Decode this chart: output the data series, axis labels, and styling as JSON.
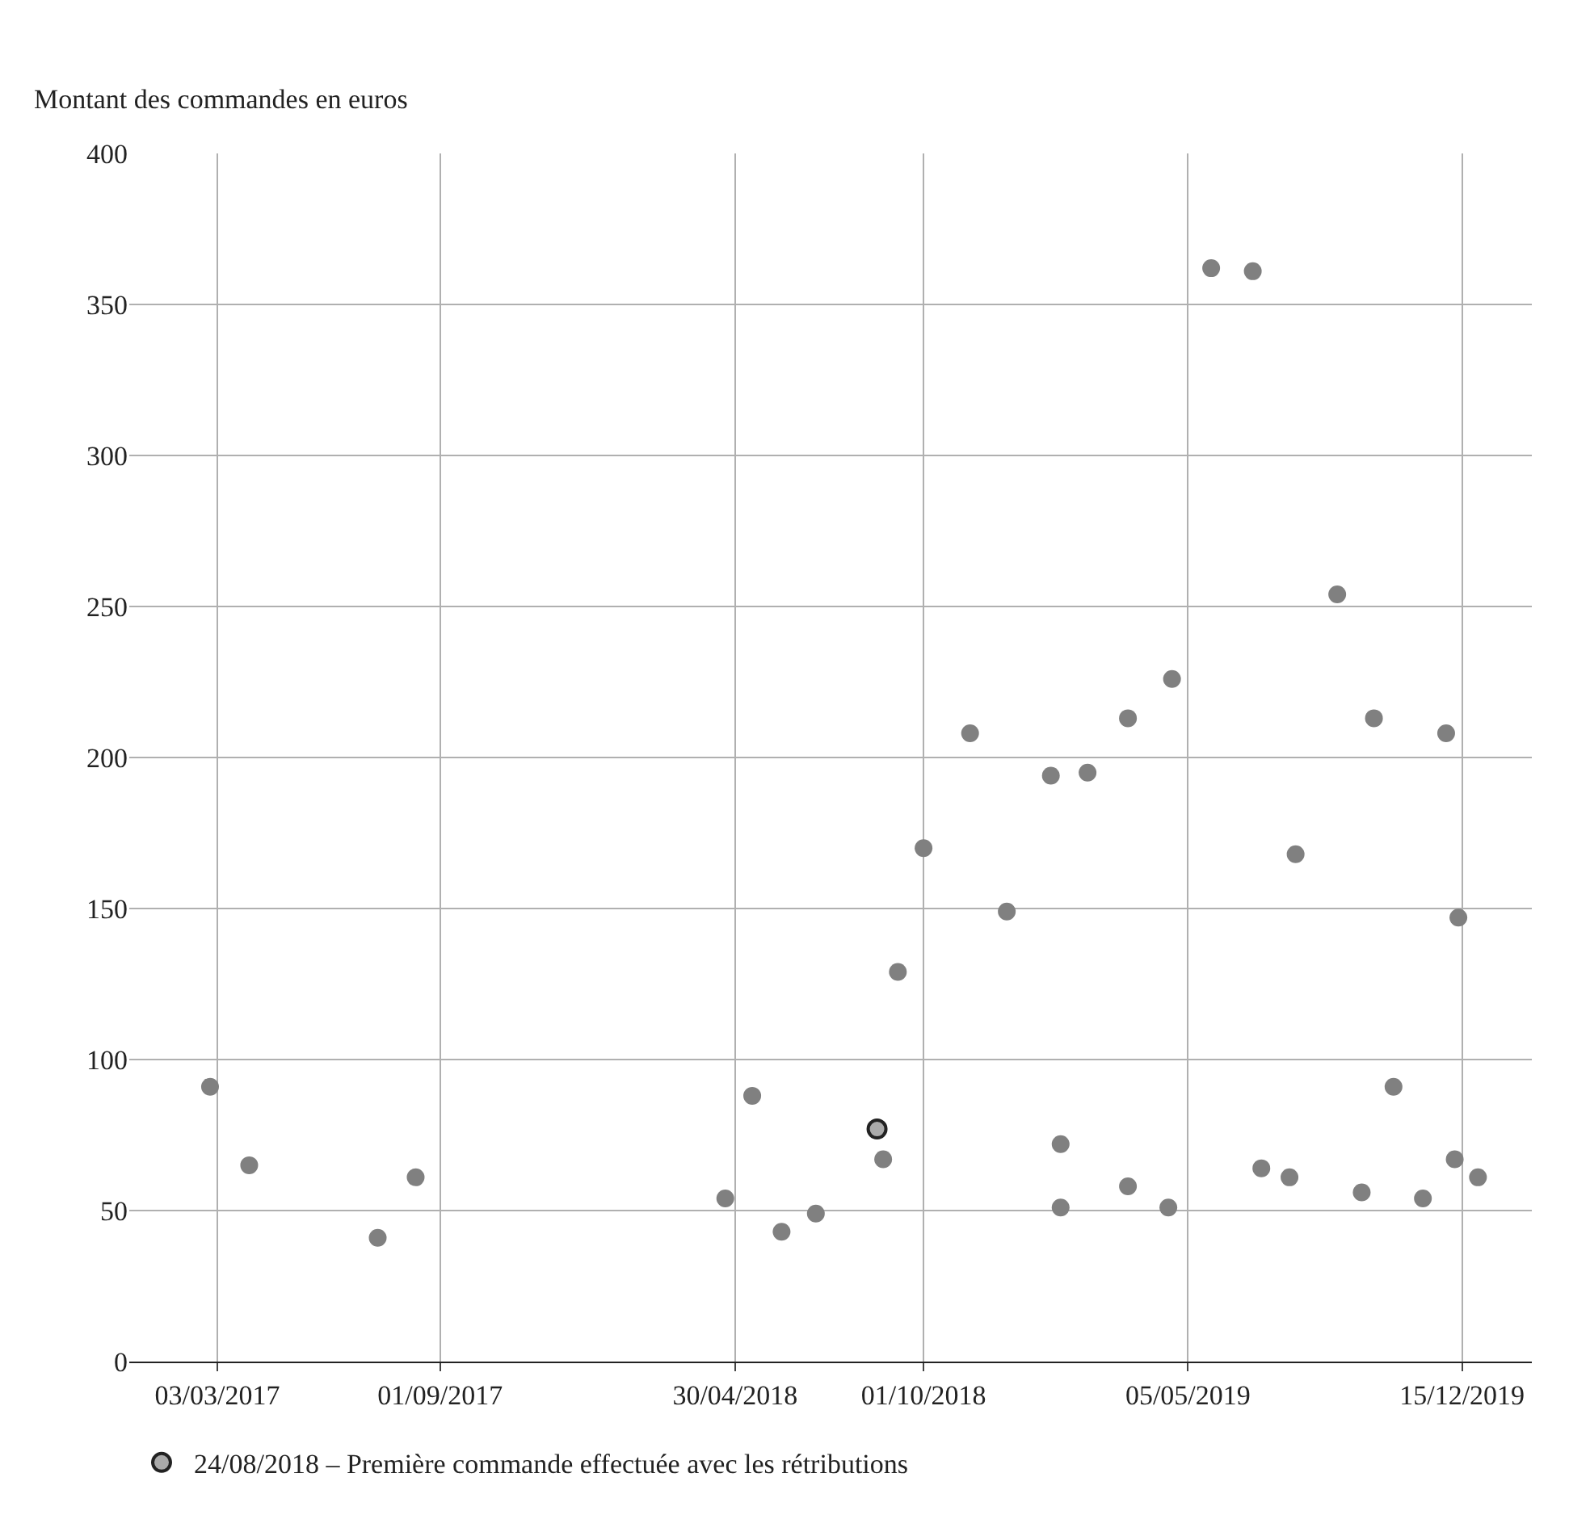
{
  "chart_data": {
    "type": "scatter",
    "ylabel": "Montant des commandes en euros",
    "xlim": [
      "2016-12-21",
      "2020-02-10"
    ],
    "xticks": [
      {
        "value": "2017-03-03",
        "label": "03/03/2017"
      },
      {
        "value": "2017-09-01",
        "label": "01/09/2017"
      },
      {
        "value": "2018-04-30",
        "label": "30/04/2018"
      },
      {
        "value": "2018-10-01",
        "label": "01/10/2018"
      },
      {
        "value": "2019-05-05",
        "label": "05/05/2019"
      },
      {
        "value": "2019-12-15",
        "label": "15/12/2019"
      }
    ],
    "ylim": [
      0,
      400
    ],
    "yticks": [
      0,
      50,
      100,
      150,
      200,
      250,
      300,
      350,
      400
    ],
    "grid": true,
    "marker": "circle",
    "legend": "bottom",
    "series": [
      {
        "color": "#808080",
        "x": [
          "2017-02-25",
          "2017-03-29",
          "2017-07-12",
          "2017-08-12",
          "2018-04-22",
          "2018-05-14",
          "2018-06-07",
          "2018-07-05",
          "2018-08-29",
          "2018-09-10",
          "2018-10-01",
          "2018-11-08",
          "2018-12-08",
          "2019-01-13",
          "2019-02-12",
          "2019-01-21",
          "2019-01-21",
          "2019-03-17",
          "2019-03-17",
          "2019-04-22",
          "2019-04-19",
          "2019-05-24",
          "2019-06-27",
          "2019-07-04",
          "2019-07-27",
          "2019-08-01",
          "2019-09-04",
          "2019-09-24",
          "2019-10-04",
          "2019-10-20",
          "2019-11-13",
          "2019-12-02",
          "2019-12-09",
          "2019-12-12",
          "2019-12-28"
        ],
        "values": [
          91,
          65,
          41,
          61,
          54,
          88,
          43,
          49,
          67,
          129,
          170,
          208,
          149,
          194,
          195,
          72,
          51,
          213,
          58,
          226,
          51,
          362,
          361,
          64,
          61,
          168,
          254,
          56,
          213,
          91,
          54,
          208,
          67,
          147,
          61
        ]
      },
      {
        "name": "24/08/2018 – Première commande effectuée avec les rétributions",
        "color": "#aaaaaa",
        "x": [
          "2018-08-24"
        ],
        "values": [
          77
        ]
      }
    ]
  }
}
